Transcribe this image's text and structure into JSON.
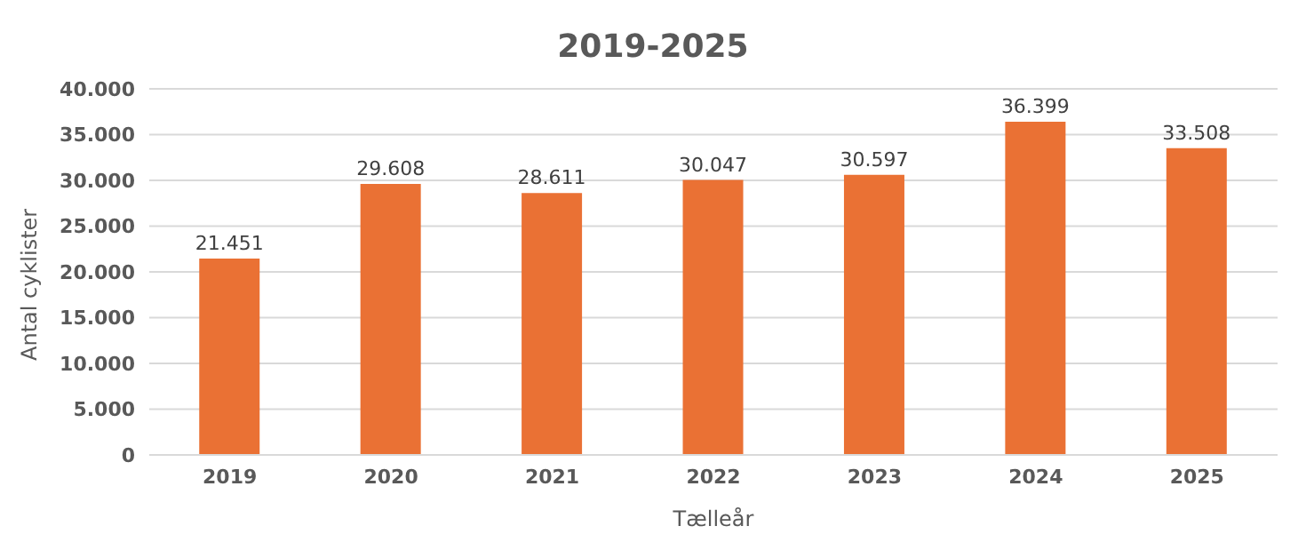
{
  "chart_data": {
    "type": "bar",
    "title": "2019-2025",
    "xlabel": "Tælleår",
    "ylabel": "Antal cyklister",
    "categories": [
      "2019",
      "2020",
      "2021",
      "2022",
      "2023",
      "2024",
      "2025"
    ],
    "values": [
      21451,
      29608,
      28611,
      30047,
      30597,
      36399,
      33508
    ],
    "value_labels": [
      "21.451",
      "29.608",
      "28.611",
      "30.047",
      "30.597",
      "36.399",
      "33.508"
    ],
    "color": "#ea7134",
    "ylim": [
      0,
      40000
    ],
    "yticks": [
      0,
      {
        "value": 5000,
        "label": "5.000"
      },
      {
        "value": 10000,
        "label": "10.000"
      },
      {
        "value": 15000,
        "label": "15.000"
      },
      {
        "value": 20000,
        "label": "20.000"
      },
      {
        "value": 25000,
        "label": "25.000"
      },
      {
        "value": 30000,
        "label": "30.000"
      },
      {
        "value": 35000,
        "label": "35.000"
      },
      {
        "value": 40000,
        "label": "40.000"
      }
    ],
    "grid": "y",
    "legend": false
  }
}
